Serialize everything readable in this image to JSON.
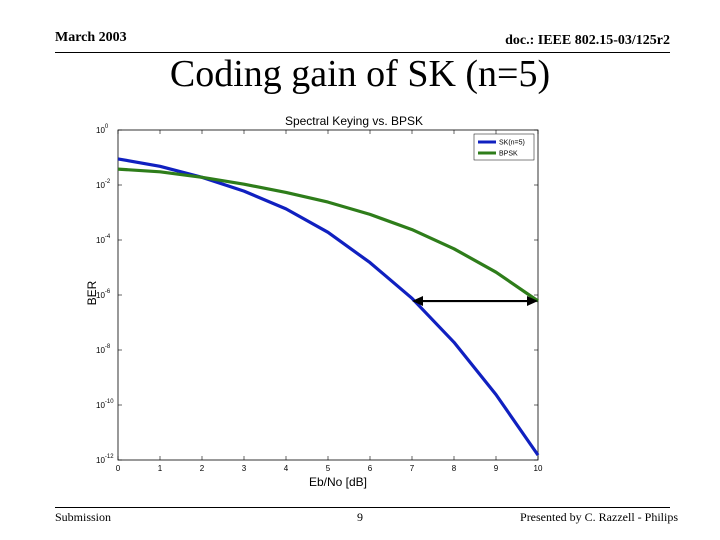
{
  "header": {
    "date": "March 2003",
    "doc_id": "doc.: IEEE 802.15-03/125r2"
  },
  "slide": {
    "title": "Coding gain of SK (n=5)"
  },
  "footer": {
    "left": "Submission",
    "page": "9",
    "right": "Presented by C. Razzell - Philips"
  },
  "chart_data": {
    "type": "line",
    "title": "Spectral Keying vs. BPSK",
    "xlabel": "Eb/No [dB]",
    "ylabel": "BER",
    "xlim": [
      0,
      10
    ],
    "ylim_log10": [
      -12,
      0
    ],
    "yscale": "log",
    "x_ticks": [
      "0",
      "1",
      "2",
      "3",
      "4",
      "5",
      "6",
      "7",
      "8",
      "9",
      "10"
    ],
    "y_ticks": [
      {
        "base": "10",
        "exp": "0"
      },
      {
        "base": "10",
        "exp": "-2"
      },
      {
        "base": "10",
        "exp": "-4"
      },
      {
        "base": "10",
        "exp": "-6"
      },
      {
        "base": "10",
        "exp": "-8"
      },
      {
        "base": "10",
        "exp": "-10"
      },
      {
        "base": "10",
        "exp": "-12"
      }
    ],
    "grid": false,
    "legend_position": "top-right",
    "series": [
      {
        "name": "SK(n=5)",
        "color": "#1020c0",
        "x": [
          0,
          1,
          2,
          3,
          4,
          5,
          6,
          7,
          8,
          9,
          10
        ],
        "log10_y": [
          -1.05,
          -1.32,
          -1.72,
          -2.22,
          -2.87,
          -3.72,
          -4.82,
          -6.12,
          -7.72,
          -9.62,
          -11.82
        ]
      },
      {
        "name": "BPSK",
        "color": "#2e7d1a",
        "x": [
          0,
          1,
          2,
          3,
          4,
          5,
          6,
          7,
          8,
          9,
          10
        ],
        "log10_y": [
          -1.42,
          -1.52,
          -1.72,
          -1.97,
          -2.27,
          -2.62,
          -3.07,
          -3.62,
          -4.32,
          -5.17,
          -6.22
        ]
      }
    ],
    "annotation": {
      "type": "double-arrow",
      "x_from": 7.0,
      "x_to": 10.0,
      "log10_y": -6.22
    }
  }
}
